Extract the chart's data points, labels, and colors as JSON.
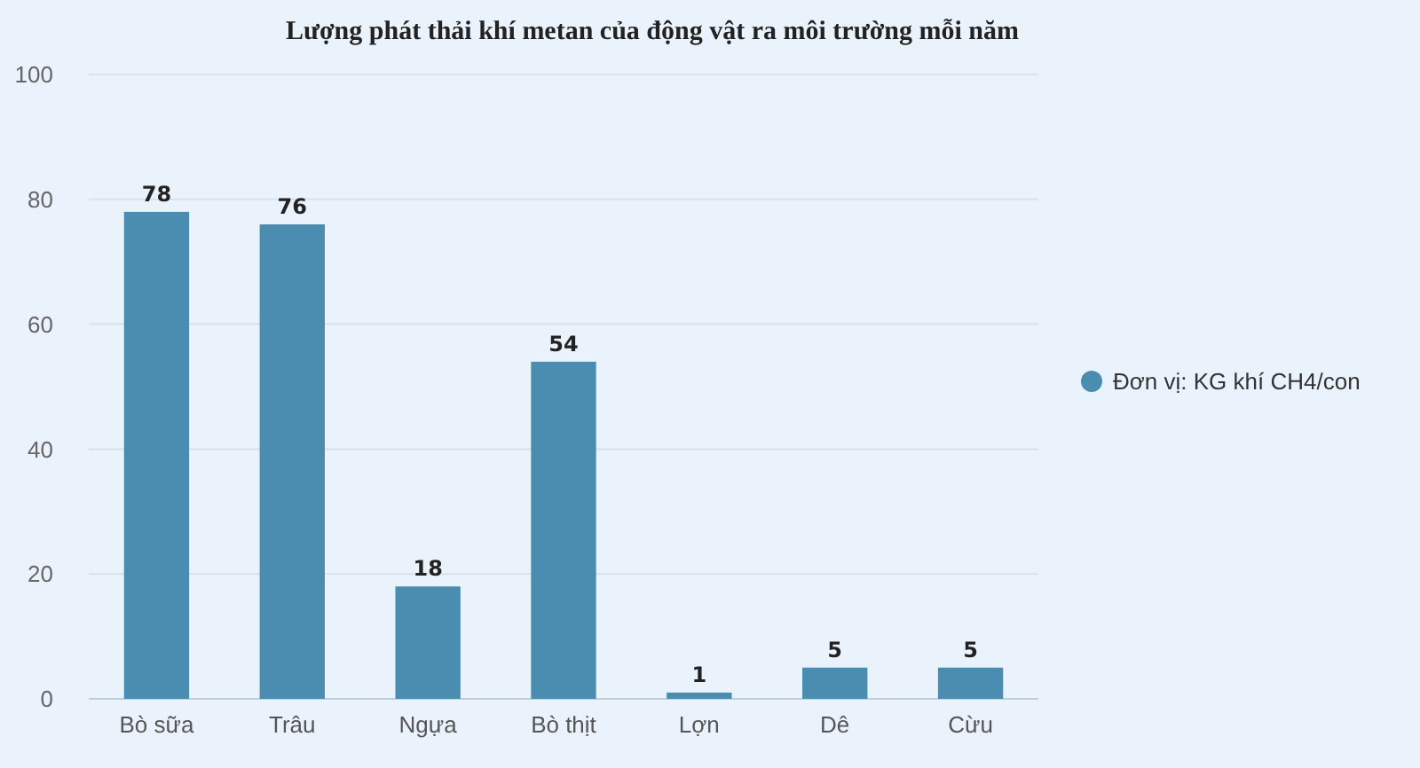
{
  "chart_data": {
    "type": "bar",
    "title": "Lượng phát thải khí metan của động vật ra môi trường mỗi năm",
    "categories": [
      "Bò sữa",
      "Trâu",
      "Ngựa",
      "Bò thịt",
      "Lợn",
      "Dê",
      "Cừu"
    ],
    "series": [
      {
        "name": "Đơn vị: KG khí CH4/con",
        "color": "#4a8db0",
        "values": [
          78,
          76,
          18,
          54,
          1,
          5,
          5
        ]
      }
    ],
    "ylim": [
      0,
      100
    ],
    "yticks": [
      0,
      20,
      40,
      60,
      80,
      100
    ],
    "grid": "y",
    "legend": "right",
    "data_labels": true
  }
}
